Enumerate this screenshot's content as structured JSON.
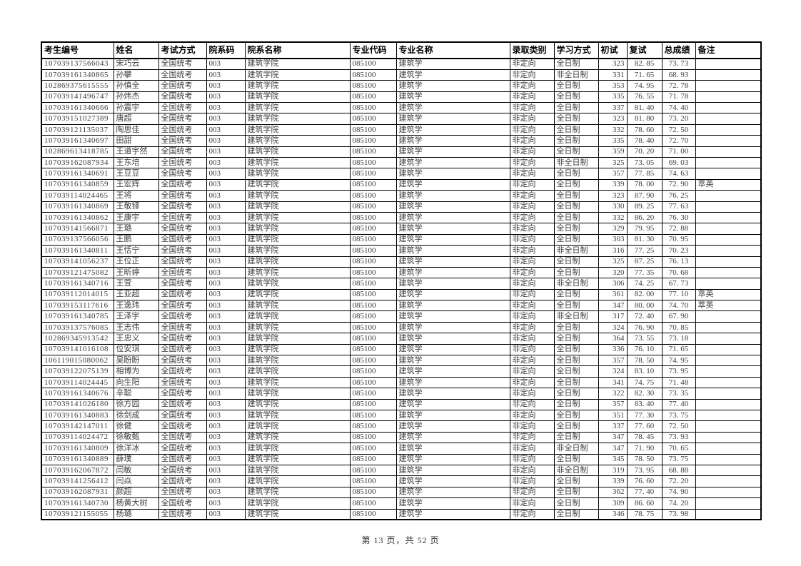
{
  "page": {
    "footer": "第 13 页，共 52 页"
  },
  "table": {
    "columns": [
      "考生编号",
      "姓名",
      "考试方式",
      "院系码",
      "院系名称",
      "专业代码",
      "专业名称",
      "录取类别",
      "学习方式",
      "初试",
      "复试",
      "总成绩",
      "备注"
    ],
    "rows": [
      [
        "107039137566043",
        "宋巧云",
        "全国统考",
        "003",
        "建筑学院",
        "085100",
        "建筑学",
        "非定向",
        "全日制",
        "323",
        "82. 85",
        "73. 73",
        ""
      ],
      [
        "107039161340865",
        "孙攀",
        "全国统考",
        "003",
        "建筑学院",
        "085100",
        "建筑学",
        "非定向",
        "非全日制",
        "331",
        "71. 65",
        "68. 93",
        ""
      ],
      [
        "102869375615555",
        "孙慎全",
        "全国统考",
        "003",
        "建筑学院",
        "085100",
        "建筑学",
        "非定向",
        "全日制",
        "353",
        "74. 95",
        "72. 78",
        ""
      ],
      [
        "107039141496747",
        "孙炜杰",
        "全国统考",
        "003",
        "建筑学院",
        "085100",
        "建筑学",
        "非定向",
        "全日制",
        "335",
        "76. 55",
        "71. 78",
        ""
      ],
      [
        "107039161340666",
        "孙震宇",
        "全国统考",
        "003",
        "建筑学院",
        "085100",
        "建筑学",
        "非定向",
        "全日制",
        "337",
        "81. 40",
        "74. 40",
        ""
      ],
      [
        "107039151027389",
        "唐超",
        "全国统考",
        "003",
        "建筑学院",
        "085100",
        "建筑学",
        "非定向",
        "全日制",
        "323",
        "81. 80",
        "73. 20",
        ""
      ],
      [
        "107039121135037",
        "陶思佳",
        "全国统考",
        "003",
        "建筑学院",
        "085100",
        "建筑学",
        "非定向",
        "全日制",
        "332",
        "78. 60",
        "72. 50",
        ""
      ],
      [
        "107039161340697",
        "田甜",
        "全国统考",
        "003",
        "建筑学院",
        "085100",
        "建筑学",
        "非定向",
        "全日制",
        "335",
        "78. 40",
        "72. 70",
        ""
      ],
      [
        "102869613418785",
        "王道宇然",
        "全国统考",
        "003",
        "建筑学院",
        "085100",
        "建筑学",
        "非定向",
        "全日制",
        "359",
        "70. 20",
        "71. 00",
        ""
      ],
      [
        "107039162087934",
        "王东培",
        "全国统考",
        "003",
        "建筑学院",
        "085100",
        "建筑学",
        "非定向",
        "非全日制",
        "325",
        "73. 05",
        "69. 03",
        ""
      ],
      [
        "107039161340691",
        "王豆豆",
        "全国统考",
        "003",
        "建筑学院",
        "085100",
        "建筑学",
        "非定向",
        "全日制",
        "357",
        "77. 85",
        "74. 63",
        ""
      ],
      [
        "107039161340859",
        "王宏辉",
        "全国统考",
        "003",
        "建筑学院",
        "085100",
        "建筑学",
        "非定向",
        "全日制",
        "339",
        "78. 00",
        "72. 90",
        "萃英"
      ],
      [
        "107039114024465",
        "王将",
        "全国统考",
        "003",
        "建筑学院",
        "085100",
        "建筑学",
        "非定向",
        "全日制",
        "323",
        "87. 90",
        "76. 25",
        ""
      ],
      [
        "107039161340869",
        "王敬铎",
        "全国统考",
        "003",
        "建筑学院",
        "085100",
        "建筑学",
        "非定向",
        "全日制",
        "330",
        "89. 25",
        "77. 63",
        ""
      ],
      [
        "107039161340862",
        "王康宇",
        "全国统考",
        "003",
        "建筑学院",
        "085100",
        "建筑学",
        "非定向",
        "全日制",
        "332",
        "86. 20",
        "76. 30",
        ""
      ],
      [
        "107039141566871",
        "王璐",
        "全国统考",
        "003",
        "建筑学院",
        "085100",
        "建筑学",
        "非定向",
        "全日制",
        "329",
        "79. 95",
        "72. 88",
        ""
      ],
      [
        "107039137566056",
        "王鹏",
        "全国统考",
        "003",
        "建筑学院",
        "085100",
        "建筑学",
        "非定向",
        "全日制",
        "303",
        "81. 30",
        "70. 95",
        ""
      ],
      [
        "107039161340811",
        "王恬宁",
        "全国统考",
        "003",
        "建筑学院",
        "085100",
        "建筑学",
        "非定向",
        "非全日制",
        "316",
        "77. 25",
        "70. 23",
        ""
      ],
      [
        "107039141056237",
        "王位正",
        "全国统考",
        "003",
        "建筑学院",
        "085100",
        "建筑学",
        "非定向",
        "全日制",
        "325",
        "87. 25",
        "76. 13",
        ""
      ],
      [
        "107039121475082",
        "王昕婷",
        "全国统考",
        "003",
        "建筑学院",
        "085100",
        "建筑学",
        "非定向",
        "全日制",
        "320",
        "77. 35",
        "70. 68",
        ""
      ],
      [
        "107039161340716",
        "王萱",
        "全国统考",
        "003",
        "建筑学院",
        "085100",
        "建筑学",
        "非定向",
        "非全日制",
        "306",
        "74. 25",
        "67. 73",
        ""
      ],
      [
        "107039112014015",
        "王亚超",
        "全国统考",
        "003",
        "建筑学院",
        "085100",
        "建筑学",
        "非定向",
        "全日制",
        "361",
        "82. 00",
        "77. 10",
        "萃英"
      ],
      [
        "107039153117616",
        "王逸玮",
        "全国统考",
        "003",
        "建筑学院",
        "085100",
        "建筑学",
        "非定向",
        "全日制",
        "347",
        "80. 00",
        "74. 70",
        "萃英"
      ],
      [
        "107039161340785",
        "王泽宇",
        "全国统考",
        "003",
        "建筑学院",
        "085100",
        "建筑学",
        "非定向",
        "非全日制",
        "317",
        "72. 40",
        "67. 90",
        ""
      ],
      [
        "107039137576085",
        "王志伟",
        "全国统考",
        "003",
        "建筑学院",
        "085100",
        "建筑学",
        "非定向",
        "全日制",
        "324",
        "76. 90",
        "70. 85",
        ""
      ],
      [
        "102869345913542",
        "王忠义",
        "全国统考",
        "003",
        "建筑学院",
        "085100",
        "建筑学",
        "非定向",
        "全日制",
        "364",
        "73. 55",
        "73. 18",
        ""
      ],
      [
        "107039141016108",
        "位安琪",
        "全国统考",
        "003",
        "建筑学院",
        "085100",
        "建筑学",
        "非定向",
        "全日制",
        "336",
        "76. 10",
        "71. 65",
        ""
      ],
      [
        "106119015080062",
        "吴盼盼",
        "全国统考",
        "003",
        "建筑学院",
        "085100",
        "建筑学",
        "非定向",
        "全日制",
        "357",
        "78. 50",
        "74. 95",
        ""
      ],
      [
        "107039122075139",
        "相博为",
        "全国统考",
        "003",
        "建筑学院",
        "085100",
        "建筑学",
        "非定向",
        "全日制",
        "324",
        "83. 10",
        "73. 95",
        ""
      ],
      [
        "107039114024445",
        "向生阳",
        "全国统考",
        "003",
        "建筑学院",
        "085100",
        "建筑学",
        "非定向",
        "全日制",
        "341",
        "74. 75",
        "71. 48",
        ""
      ],
      [
        "107039161340676",
        "辛聪",
        "全国统考",
        "003",
        "建筑学院",
        "085100",
        "建筑学",
        "非定向",
        "全日制",
        "322",
        "82. 30",
        "73. 35",
        ""
      ],
      [
        "107039141026180",
        "徐方园",
        "全国统考",
        "003",
        "建筑学院",
        "085100",
        "建筑学",
        "非定向",
        "全日制",
        "357",
        "83. 40",
        "77. 40",
        ""
      ],
      [
        "107039161340883",
        "徐剑成",
        "全国统考",
        "003",
        "建筑学院",
        "085100",
        "建筑学",
        "非定向",
        "全日制",
        "351",
        "77. 30",
        "73. 75",
        ""
      ],
      [
        "107039142147011",
        "徐健",
        "全国统考",
        "003",
        "建筑学院",
        "085100",
        "建筑学",
        "非定向",
        "全日制",
        "337",
        "77. 60",
        "72. 50",
        ""
      ],
      [
        "107039114024472",
        "徐敏甄",
        "全国统考",
        "003",
        "建筑学院",
        "085100",
        "建筑学",
        "非定向",
        "全日制",
        "347",
        "78. 45",
        "73. 93",
        ""
      ],
      [
        "107039161340809",
        "徐洋冰",
        "全国统考",
        "003",
        "建筑学院",
        "085100",
        "建筑学",
        "非定向",
        "非全日制",
        "347",
        "71. 90",
        "70. 65",
        ""
      ],
      [
        "107039161340889",
        "薛璞",
        "全国统考",
        "003",
        "建筑学院",
        "085100",
        "建筑学",
        "非定向",
        "全日制",
        "345",
        "78. 50",
        "73. 75",
        ""
      ],
      [
        "107039162067872",
        "闫敏",
        "全国统考",
        "003",
        "建筑学院",
        "085100",
        "建筑学",
        "非定向",
        "非全日制",
        "319",
        "73. 95",
        "68. 88",
        ""
      ],
      [
        "107039141256412",
        "闫焱",
        "全国统考",
        "003",
        "建筑学院",
        "085100",
        "建筑学",
        "非定向",
        "全日制",
        "339",
        "76. 60",
        "72. 20",
        ""
      ],
      [
        "107039162087931",
        "颜超",
        "全国统考",
        "003",
        "建筑学院",
        "085100",
        "建筑学",
        "非定向",
        "全日制",
        "362",
        "77. 40",
        "74. 90",
        ""
      ],
      [
        "107039161340730",
        "杨黄大树",
        "全国统考",
        "003",
        "建筑学院",
        "085100",
        "建筑学",
        "非定向",
        "全日制",
        "309",
        "86. 60",
        "74. 20",
        ""
      ],
      [
        "107039121155055",
        "杨璐",
        "全国统考",
        "003",
        "建筑学院",
        "085100",
        "建筑学",
        "非定向",
        "全日制",
        "346",
        "78. 75",
        "73. 98",
        ""
      ]
    ]
  }
}
